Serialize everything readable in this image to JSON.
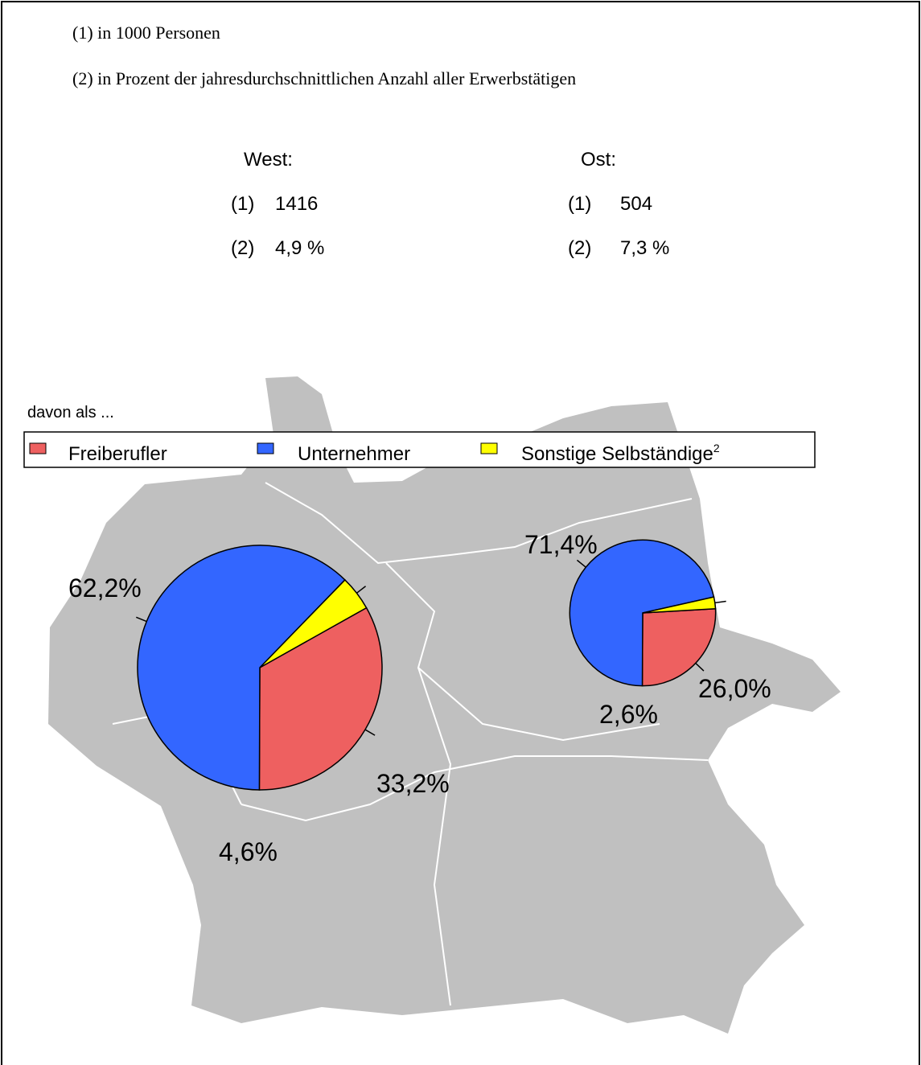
{
  "notes": [
    "(1) in 1000 Personen",
    "(2) in Prozent der jahresdurchschnittlichen Anzahl aller Erwerbstätigen"
  ],
  "lead": "davon als ...",
  "legend": [
    {
      "name": "Freiberufler",
      "color": "#ee6060"
    },
    {
      "name": "Unternehmer",
      "color": "#3366ff"
    },
    {
      "name": "Sonstige Selbständige",
      "footnote": "2",
      "color": "#ffff00"
    }
  ],
  "chart_data": [
    {
      "type": "pie",
      "title": "West:",
      "stats": [
        {
          "label": "(1)",
          "value": 1416
        },
        {
          "label": "(2)",
          "value": 4.9,
          "value_label": "4,9 %"
        }
      ],
      "values": [
        33.2,
        62.2,
        4.6
      ],
      "value_labels": [
        "33,2%",
        "62,2%",
        "4,6%"
      ]
    },
    {
      "type": "pie",
      "title": "Ost:",
      "stats": [
        {
          "label": "(1)",
          "value": 504
        },
        {
          "label": "(2)",
          "value": 7.3,
          "value_label": "7,3 %"
        }
      ],
      "values": [
        26.0,
        71.4,
        2.6
      ],
      "value_labels": [
        "26,0%",
        "71,4%",
        "2,6%"
      ]
    }
  ]
}
